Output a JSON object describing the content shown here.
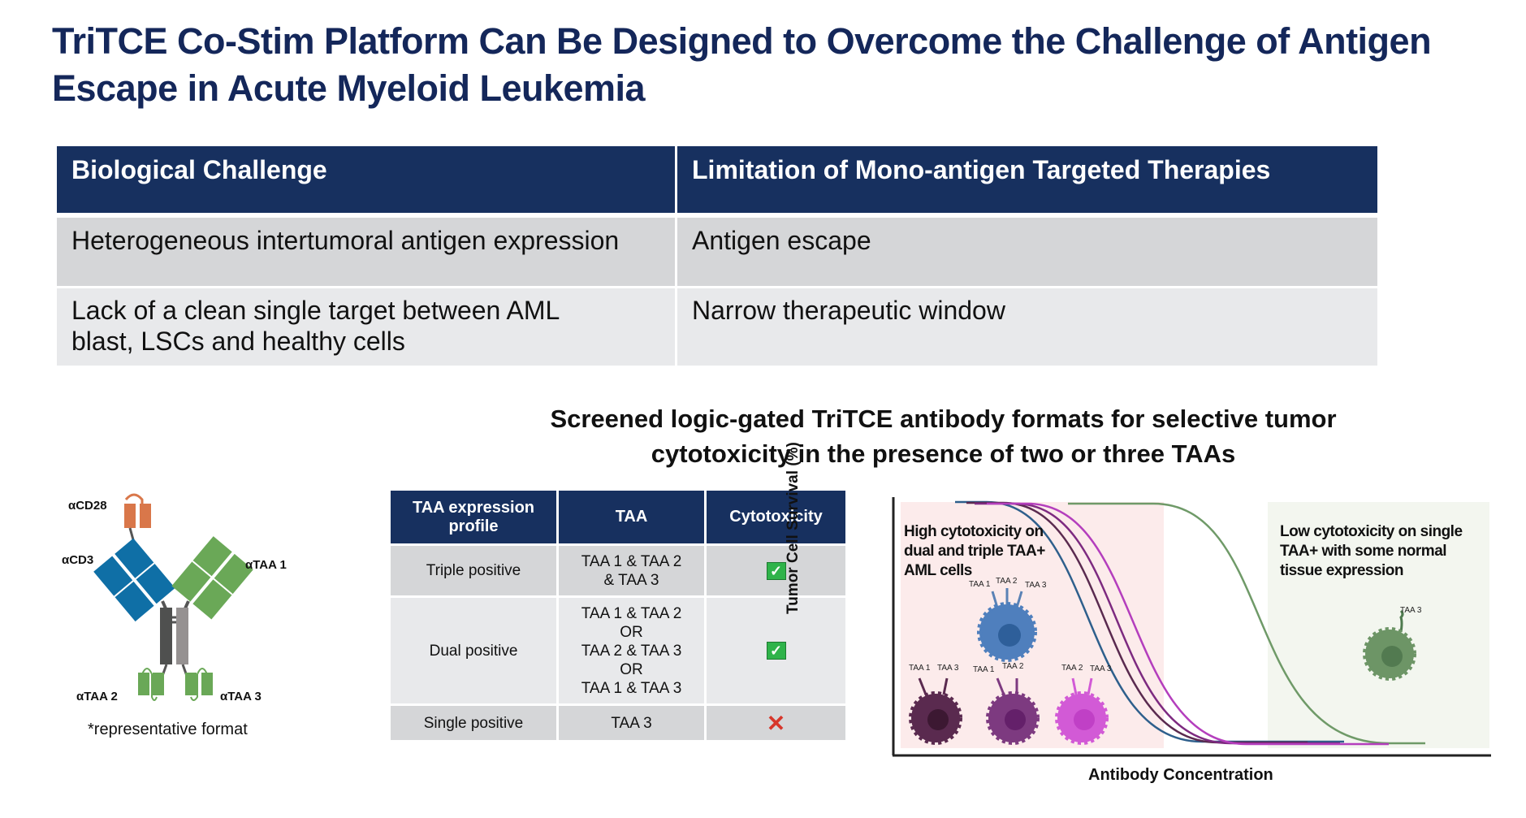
{
  "title": "TriTCE Co-Stim Platform Can Be Designed to Overcome the Challenge of Antigen Escape in Acute Myeloid Leukemia",
  "challenge_table": {
    "headers": [
      "Biological Challenge",
      "Limitation of Mono-antigen Targeted Therapies"
    ],
    "rows": [
      [
        "Heterogeneous intertumoral antigen expression",
        "Antigen escape"
      ],
      [
        "Lack of a clean single target between AML blast, LSCs and healthy cells",
        "Narrow therapeutic window"
      ]
    ]
  },
  "subtitle": "Screened logic-gated TriTCE antibody formats for selective tumor cytotoxicity in the presence of two or three TAAs",
  "antibody": {
    "labels": {
      "cd28": "αCD28",
      "cd3": "αCD3",
      "taa1": "αTAA 1",
      "taa2": "αTAA 2",
      "taa3": "αTAA 3"
    },
    "caption": "*representative format",
    "colors": {
      "cd28": "#d9774a",
      "cd3": "#0f6fa6",
      "taa": "#6aa857",
      "fc_dark": "#4f504f",
      "fc_light": "#959191"
    }
  },
  "format_table": {
    "headers": [
      "TAA expression profile",
      "TAA",
      "Cytotoxicity"
    ],
    "rows": [
      {
        "profile": "Triple positive",
        "taa": [
          "TAA 1 & TAA 2",
          "& TAA 3"
        ],
        "cytotoxicity": "check-icon"
      },
      {
        "profile": "Dual positive",
        "taa": [
          "TAA 1 & TAA 2",
          "OR",
          "TAA 2 & TAA 3",
          "OR",
          "TAA 1 & TAA 3"
        ],
        "cytotoxicity": "check-icon"
      },
      {
        "profile": "Single positive",
        "taa": [
          "TAA 3"
        ],
        "cytotoxicity": "x-icon"
      }
    ]
  },
  "chart": {
    "ylabel": "Tumor Cell Survival (%)",
    "xlabel": "Antibody Concentration",
    "left_note": "High cytotoxicity on dual and triple TAA+ AML cells",
    "right_note": "Low cytotoxicity on single TAA+ with some normal tissue expression",
    "cells": {
      "triple": [
        "TAA 1",
        "TAA 2",
        "TAA 3"
      ],
      "dual_a": [
        "TAA 1",
        "TAA 3"
      ],
      "dual_b": [
        "TAA 1",
        "TAA 2"
      ],
      "dual_c": [
        "TAA 2",
        "TAA 3"
      ],
      "single": [
        "TAA 3"
      ]
    },
    "colors": {
      "blue": "#2e5f8c",
      "dark_purple": "#5a2a4f",
      "purple": "#7d2a80",
      "magenta": "#b43ebd",
      "green": "#6f9a68"
    }
  }
}
